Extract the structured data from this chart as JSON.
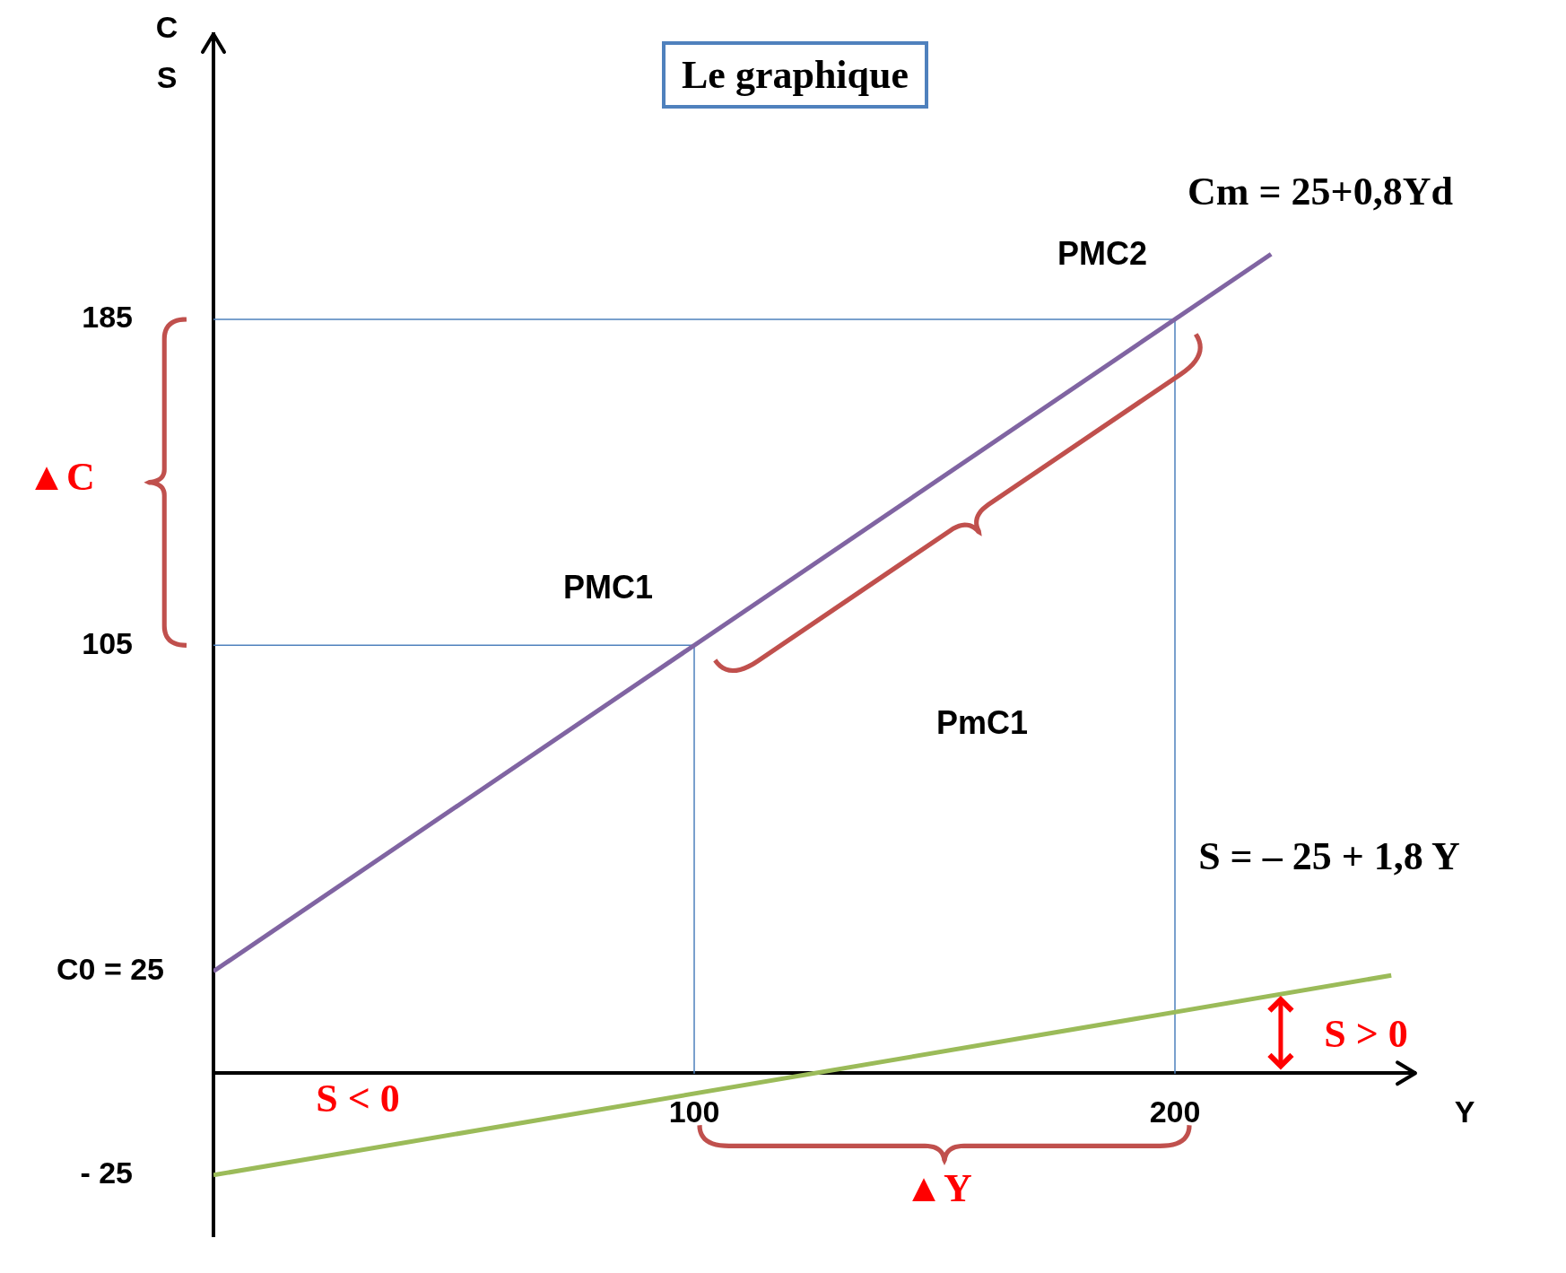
{
  "chart_data": {
    "type": "line",
    "title": "Le graphique",
    "xlabel": "Y",
    "ylabel": "C\nS",
    "series": [
      {
        "color": "#8064a2",
        "values": [
          25,
          201
        ],
        "x": [
          0,
          220
        ]
      },
      {
        "color": "#9bbb59",
        "values": [
          -25,
          24
        ],
        "x": [
          0,
          245
        ]
      },
      {
        "color": "#4f81bd",
        "values": [
          105,
          105,
          0
        ],
        "x": [
          0,
          100,
          100
        ]
      },
      {
        "color": "#4f81bd",
        "values": [
          185,
          185,
          0
        ],
        "x": [
          0,
          200,
          200
        ]
      }
    ],
    "xlim": [
      0,
      250
    ],
    "xticks": [
      100,
      200
    ],
    "ylim": [
      -40,
      255
    ],
    "yticks": [
      185,
      105,
      {
        "value": 25,
        "label": "C0 = 25"
      },
      {
        "value": -25,
        "label": "- 25"
      }
    ],
    "annotations": [
      "Cm = 25+0,8Yd",
      "S = – 25 + 1,8 Y",
      "PMC1",
      "PMC2",
      "PmC1",
      "S > 0",
      "S < 0",
      "▲Y",
      "▲C"
    ],
    "grid": false,
    "legend": false,
    "marker": "none",
    "line_style": "solid"
  }
}
